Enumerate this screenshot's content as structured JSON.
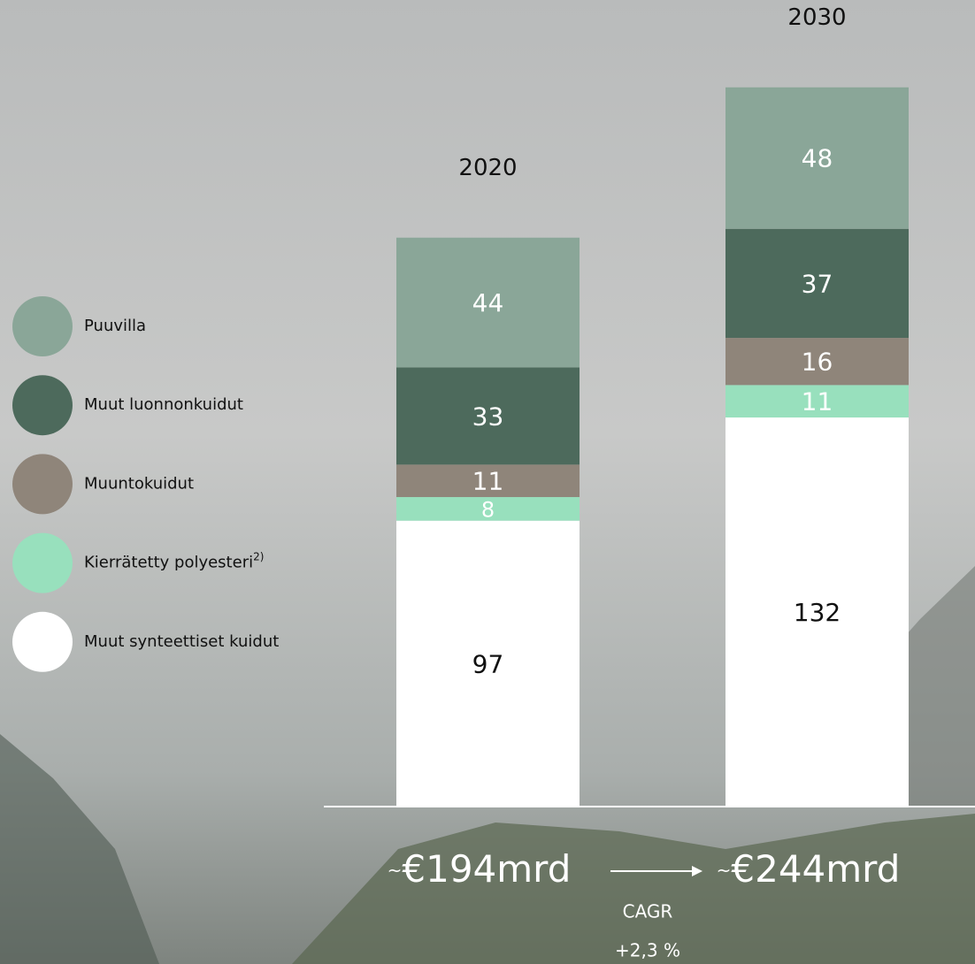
{
  "chart_data": {
    "type": "stacked-bar",
    "categories": [
      "2020",
      "2030"
    ],
    "series": [
      {
        "name": "Muut synteettiset kuidut",
        "color": "#ffffff",
        "values": [
          97,
          132
        ]
      },
      {
        "name": "Kierrätetty polyesteri",
        "footnote": "2)",
        "color": "#98e0bd",
        "values": [
          8,
          11
        ]
      },
      {
        "name": "Muuntokuidut",
        "color": "#8f857a",
        "values": [
          11,
          16
        ]
      },
      {
        "name": "Muut luonnonkuidut",
        "color": "#4d6a5c",
        "values": [
          33,
          37
        ]
      },
      {
        "name": "Puuvilla",
        "color": "#8aa698",
        "values": [
          44,
          48
        ]
      }
    ],
    "totals": [
      {
        "prefix": "~",
        "label": "€194mrd"
      },
      {
        "prefix": "~",
        "label": "€244mrd"
      }
    ],
    "growth": {
      "label": "CAGR",
      "value": "+2,3 %"
    }
  }
}
